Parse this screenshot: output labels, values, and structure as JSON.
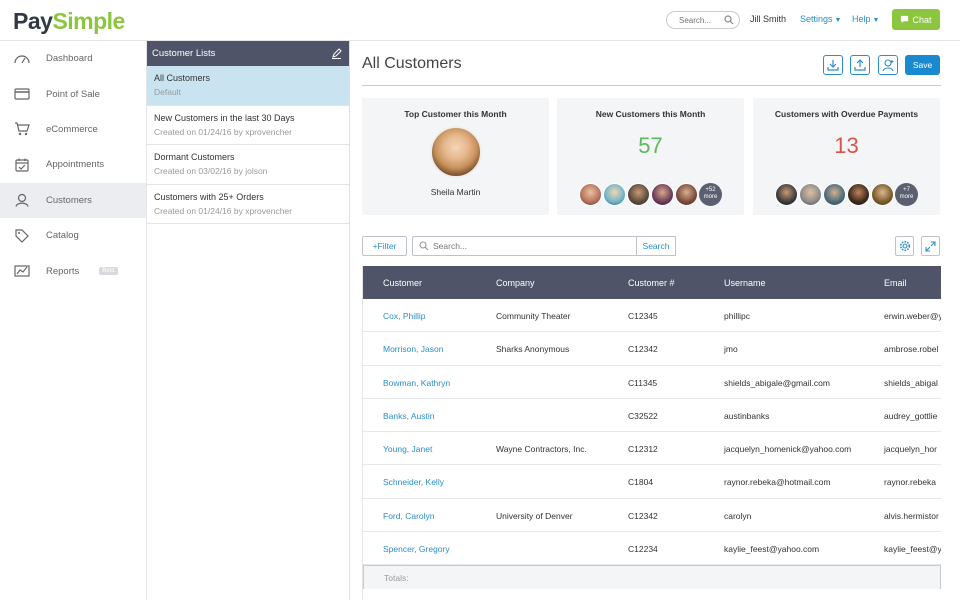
{
  "header": {
    "logo_pay": "Pay",
    "logo_simple": "Simple",
    "search_placeholder": "Search...",
    "user": "Jill Smith",
    "settings": "Settings",
    "help": "Help",
    "chat": "Chat"
  },
  "sidebar": {
    "items": [
      {
        "label": "Dashboard",
        "icon": "gauge-icon"
      },
      {
        "label": "Point of Sale",
        "icon": "credit-card-icon"
      },
      {
        "label": "eCommerce",
        "icon": "cart-icon"
      },
      {
        "label": "Appointments",
        "icon": "calendar-icon"
      },
      {
        "label": "Customers",
        "icon": "user-icon"
      },
      {
        "label": "Catalog",
        "icon": "tag-icon"
      },
      {
        "label": "Reports",
        "icon": "chart-icon"
      }
    ],
    "beta_label": "Beta"
  },
  "lists": {
    "title": "Customer Lists",
    "items": [
      {
        "title": "All Customers",
        "subtitle": "Default"
      },
      {
        "title": "New Customers in the last 30 Days",
        "subtitle": "Created on 01/24/16 by xprovencher"
      },
      {
        "title": "Dormant Customers",
        "subtitle": "Created on 03/02/16 by jolson"
      },
      {
        "title": "Customers with 25+ Orders",
        "subtitle": "Created on 01/24/16 by xprovencher"
      }
    ]
  },
  "main": {
    "title": "All Customers",
    "save": "Save",
    "colors": {
      "green": "#5cb85c",
      "red": "#d9534f",
      "accent": "#1a8ad0"
    },
    "cards": {
      "top": {
        "title": "Top Customer this Month",
        "name": "Sheila Martin"
      },
      "new": {
        "title": "New Customers this Month",
        "value": "57",
        "more": "+52",
        "more_label": "more"
      },
      "overdue": {
        "title": "Customers with Overdue Payments",
        "value": "13",
        "more": "+7",
        "more_label": "more"
      }
    },
    "filter_label": "+Filter",
    "search_placeholder": "Search...",
    "search_button": "Search",
    "table": {
      "headers": [
        "Customer",
        "Company",
        "Customer #",
        "Username",
        "Email"
      ],
      "rows": [
        [
          "Cox, Phillip",
          "Community Theater",
          "C12345",
          "phillipc",
          "erwin.weber@y"
        ],
        [
          "Morrison, Jason",
          "Sharks Anonymous",
          "C12342",
          "jmo",
          "ambrose.robel"
        ],
        [
          "Bowman, Kathryn",
          "",
          "C11345",
          "shields_abigale@gmail.com",
          "shields_abigal"
        ],
        [
          "Banks, Austin",
          "",
          "C32522",
          "austinbanks",
          "audrey_gottlie"
        ],
        [
          "Young, Janet",
          "Wayne Contractors, Inc.",
          "C12312",
          "jacquelyn_homenick@yahoo.com",
          "jacquelyn_hor"
        ],
        [
          "Schneider, Kelly",
          "",
          "C1804",
          "raynor.rebeka@hotmail.com",
          "raynor.rebeka"
        ],
        [
          "Ford, Carolyn",
          "University of Denver",
          "C12342",
          "carolyn",
          "alvis.hermistor"
        ],
        [
          "Spencer, Gregory",
          "",
          "C12234",
          "kaylie_feest@yahoo.com",
          "kaylie_feest@y"
        ]
      ],
      "totals": "Totals:"
    }
  }
}
